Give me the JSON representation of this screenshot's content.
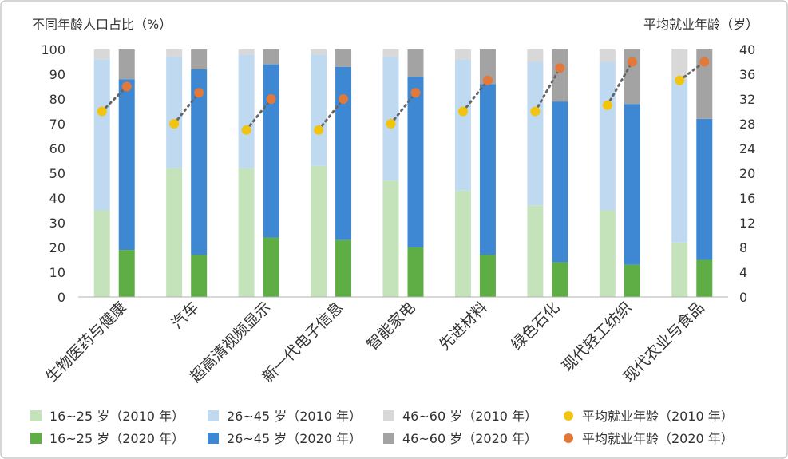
{
  "chart_data": {
    "type": "bar",
    "stacked": true,
    "left_axis_title": "不同年龄人口占比（%）",
    "right_axis_title": "平均就业年龄（岁）",
    "ylim_left": [
      0,
      100
    ],
    "ylim_right": [
      0,
      40
    ],
    "left_ticks": [
      "0",
      "10",
      "20",
      "30",
      "40",
      "50",
      "60",
      "70",
      "80",
      "90",
      "100"
    ],
    "right_ticks": [
      "0",
      "4",
      "8",
      "12",
      "16",
      "20",
      "24",
      "28",
      "32",
      "36",
      "40"
    ],
    "categories": [
      "生物医药与健康",
      "汽车",
      "超高清视频显示",
      "新一代电子信息",
      "智能家电",
      "先进材料",
      "绿色石化",
      "现代轻工纺织",
      "现代农业与食品"
    ],
    "series": [
      {
        "name": "16~25 岁（2010 年）",
        "year": "2010",
        "group": "16-25",
        "values": [
          35,
          52,
          52,
          53,
          47,
          43,
          37,
          35,
          22
        ]
      },
      {
        "name": "26~45 岁（2010 年）",
        "year": "2010",
        "group": "26-45",
        "values": [
          61,
          45,
          46,
          45,
          50,
          53,
          58,
          60,
          66
        ]
      },
      {
        "name": "46~60 岁（2010 年）",
        "year": "2010",
        "group": "46-60",
        "values": [
          4,
          3,
          2,
          2,
          3,
          4,
          5,
          5,
          12
        ]
      },
      {
        "name": "16~25 岁（2020 年）",
        "year": "2020",
        "group": "16-25",
        "values": [
          19,
          17,
          24,
          23,
          20,
          17,
          14,
          13,
          15
        ]
      },
      {
        "name": "26~45 岁（2020 年）",
        "year": "2020",
        "group": "26-45",
        "values": [
          69,
          75,
          70,
          70,
          69,
          69,
          65,
          65,
          57
        ]
      },
      {
        "name": "46~60 岁（2020 年）",
        "year": "2020",
        "group": "46-60",
        "values": [
          12,
          8,
          6,
          7,
          11,
          14,
          21,
          22,
          28
        ]
      }
    ],
    "avg_age": [
      {
        "name": "平均就业年龄（2010 年）",
        "year": "2010",
        "values": [
          30,
          28,
          27,
          27,
          28,
          30,
          30,
          31,
          35
        ]
      },
      {
        "name": "平均就业年龄（2020 年）",
        "year": "2020",
        "values": [
          34,
          33,
          32,
          32,
          33,
          35,
          37,
          38,
          38
        ]
      }
    ],
    "legend": [
      {
        "label": "16~25 岁（2010 年）",
        "kind": "square",
        "color": "#c4e3bb"
      },
      {
        "label": "26~45 岁（2010 年）",
        "kind": "square",
        "color": "#bfd9f0"
      },
      {
        "label": "46~60 岁（2010 年）",
        "kind": "square",
        "color": "#d8d8d8"
      },
      {
        "label": "平均就业年龄（2010 年）",
        "kind": "dot",
        "color": "#f1c40f"
      },
      {
        "label": "16~25 岁（2020 年）",
        "kind": "square",
        "color": "#5fad45"
      },
      {
        "label": "26~45 岁（2020 年）",
        "kind": "square",
        "color": "#3e88d3"
      },
      {
        "label": "46~60 岁（2020 年）",
        "kind": "square",
        "color": "#a3a3a3"
      },
      {
        "label": "平均就业年龄（2020 年）",
        "kind": "dot",
        "color": "#e2783a"
      }
    ],
    "colors": {
      "2010": {
        "16-25": "#c4e3bb",
        "26-45": "#bfd9f0",
        "46-60": "#d8d8d8",
        "avg": "#f1c40f"
      },
      "2020": {
        "16-25": "#5fad45",
        "26-45": "#3e88d3",
        "46-60": "#a3a3a3",
        "avg": "#e2783a"
      },
      "connector": "#666666",
      "axis": "#b0b0b0",
      "text": "#333333",
      "frame": "#c8c8c8"
    }
  }
}
